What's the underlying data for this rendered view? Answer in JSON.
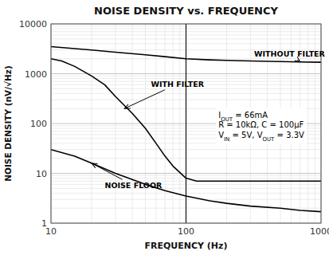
{
  "chart_data": {
    "type": "line",
    "title": "NOISE DENSITY vs. FREQUENCY",
    "x_label": "FREQUENCY (Hz)",
    "y_label": "NOISE DENSITY (nV/√Hz)",
    "log": true,
    "grid": true,
    "xlim": [
      10,
      1000
    ],
    "ylim": [
      1,
      10000
    ],
    "xticks": [
      10,
      100,
      1000
    ],
    "yticks": [
      1,
      10,
      100,
      1000,
      10000
    ],
    "series": [
      {
        "color": "#000000",
        "x": [
          10,
          15,
          20,
          30,
          50,
          70,
          100,
          150,
          200,
          300,
          500,
          700,
          1000
        ],
        "values": [
          3500,
          3200,
          3000,
          2700,
          2400,
          2200,
          2000,
          1900,
          1850,
          1800,
          1750,
          1720,
          1700
        ]
      },
      {
        "color": "#000000",
        "x": [
          10,
          12,
          15,
          20,
          25,
          30,
          40,
          50,
          60,
          70,
          80,
          100,
          120,
          150,
          200,
          300,
          500,
          700,
          1000
        ],
        "values": [
          2000,
          1800,
          1400,
          900,
          600,
          350,
          160,
          80,
          40,
          22,
          14,
          8,
          7,
          7,
          7,
          7,
          7,
          7,
          7
        ]
      },
      {
        "color": "#000000",
        "x": [
          10,
          15,
          20,
          30,
          50,
          70,
          100,
          150,
          200,
          300,
          500,
          700,
          1000
        ],
        "values": [
          30,
          22,
          16,
          10,
          6,
          4.5,
          3.5,
          2.8,
          2.5,
          2.2,
          2.0,
          1.8,
          1.7
        ]
      }
    ],
    "annotations": [
      {
        "text": "WITHOUT FILTER",
        "x": 700,
        "y": 1720,
        "text_x": 320,
        "text_y": 2200
      },
      {
        "text": "WITH FILTER",
        "x": 35,
        "y": 200,
        "text_x": 55,
        "text_y": 550
      },
      {
        "text": "NOISE FLOOR",
        "x": 20,
        "y": 16,
        "text_x": 25,
        "text_y": 5
      }
    ],
    "text_box": [
      [
        {
          "text": "I"
        },
        {
          "text": "OUT",
          "sub": true
        },
        {
          "text": " = 66mA"
        }
      ],
      [
        {
          "text": "R = 10kΩ, C = 100μF"
        }
      ],
      [
        {
          "text": "V"
        },
        {
          "text": "IN",
          "sub": true
        },
        {
          "text": " = 5V, V"
        },
        {
          "text": "OUT",
          "sub": true
        },
        {
          "text": " = 3.3V"
        }
      ]
    ],
    "vlines": [
      100
    ]
  }
}
